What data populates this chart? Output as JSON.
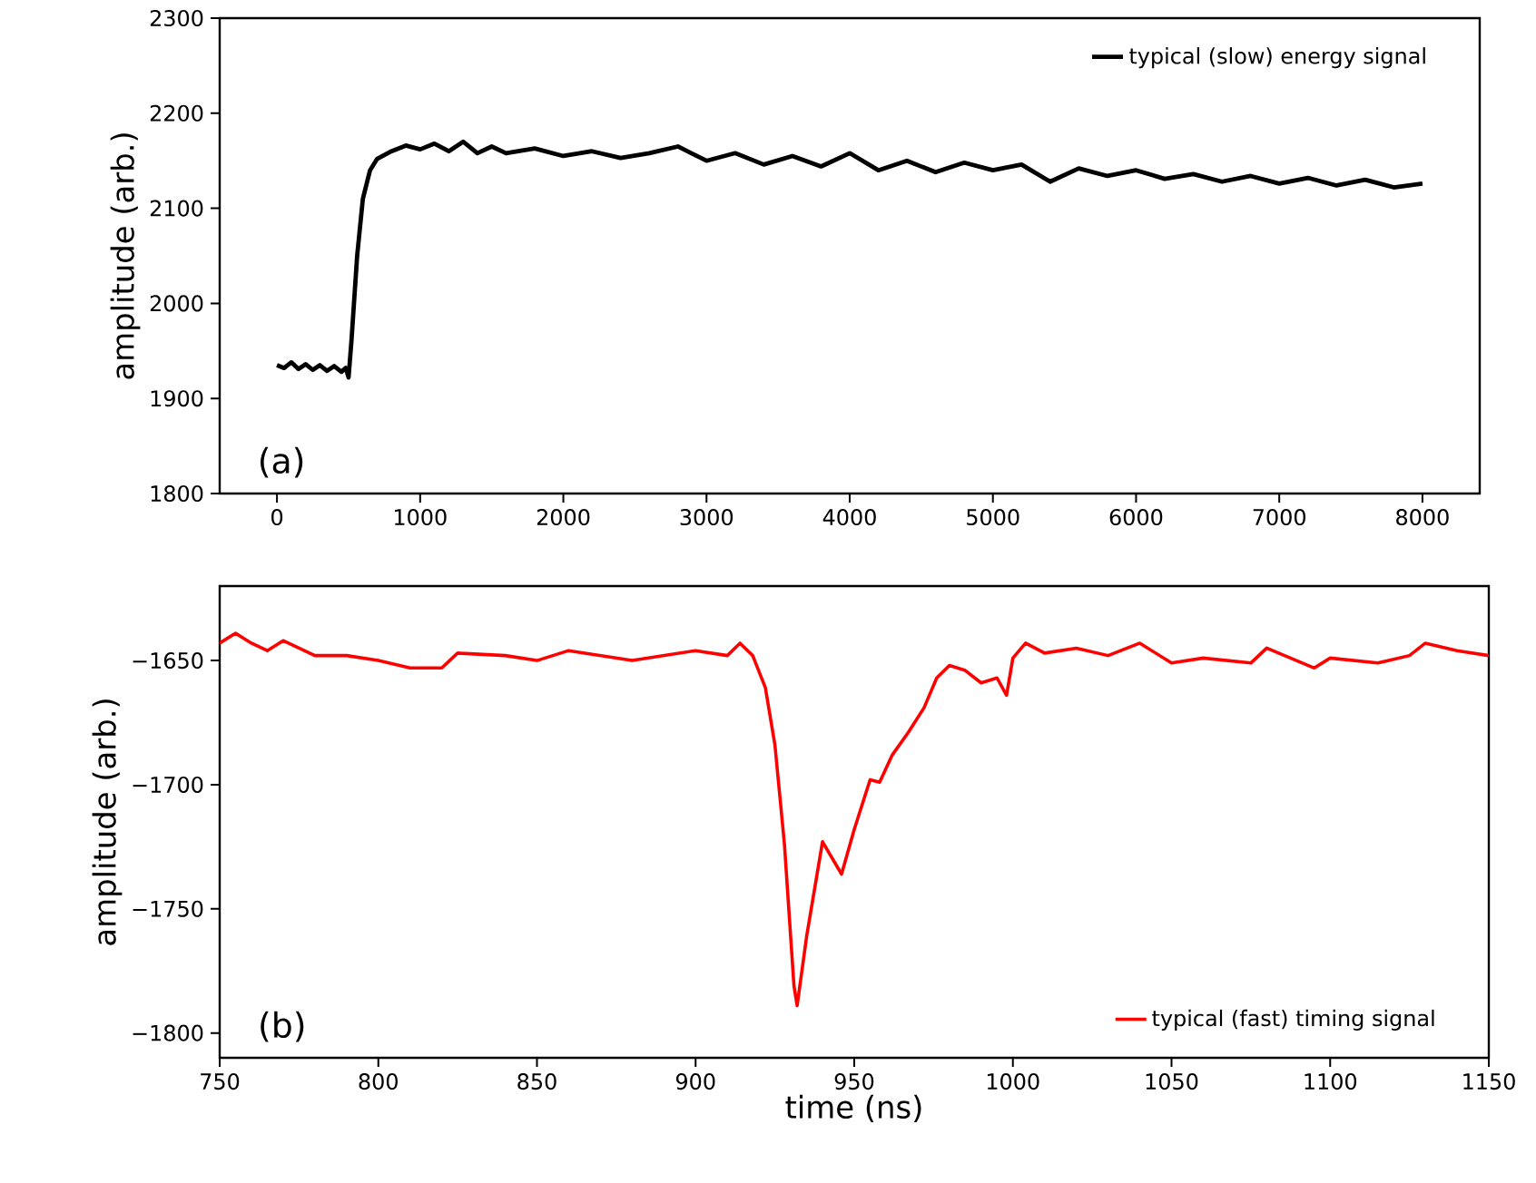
{
  "chart_data": [
    {
      "type": "line",
      "ylabel": "amplitude (arb.)",
      "annotations": [
        "(a)"
      ],
      "legend": "top right",
      "grid": false,
      "xlim": [
        -400,
        8400
      ],
      "ylim": [
        1800,
        2300
      ],
      "xticks": [
        0,
        1000,
        2000,
        3000,
        4000,
        5000,
        6000,
        7000,
        8000
      ],
      "yticks": [
        1800,
        1900,
        2000,
        2100,
        2200,
        2300
      ],
      "series": [
        {
          "name": "typical (slow) energy signal",
          "color": "#000000",
          "x": [
            0,
            50,
            100,
            150,
            200,
            250,
            300,
            350,
            400,
            450,
            480,
            500,
            520,
            560,
            600,
            650,
            700,
            800,
            900,
            1000,
            1100,
            1200,
            1300,
            1400,
            1500,
            1600,
            1800,
            2000,
            2200,
            2400,
            2600,
            2800,
            3000,
            3200,
            3400,
            3600,
            3800,
            4000,
            4200,
            4400,
            4600,
            4800,
            5000,
            5200,
            5400,
            5600,
            5800,
            6000,
            6200,
            6400,
            6600,
            6800,
            7000,
            7200,
            7400,
            7600,
            7800,
            8000
          ],
          "values": [
            1935,
            1932,
            1938,
            1931,
            1936,
            1930,
            1935,
            1929,
            1934,
            1928,
            1932,
            1922,
            1960,
            2050,
            2110,
            2140,
            2152,
            2160,
            2166,
            2162,
            2168,
            2160,
            2170,
            2158,
            2165,
            2158,
            2163,
            2155,
            2160,
            2153,
            2158,
            2165,
            2150,
            2158,
            2146,
            2155,
            2144,
            2158,
            2140,
            2150,
            2138,
            2148,
            2140,
            2146,
            2128,
            2142,
            2134,
            2140,
            2131,
            2136,
            2128,
            2134,
            2126,
            2132,
            2124,
            2130,
            2122,
            2126
          ]
        }
      ]
    },
    {
      "type": "line",
      "ylabel": "amplitude (arb.)",
      "xlabel": "time (ns)",
      "annotations": [
        "(b)"
      ],
      "legend": "bottom right",
      "grid": false,
      "xlim": [
        750,
        1150
      ],
      "ylim": [
        -1810,
        -1620
      ],
      "xticks": [
        750,
        800,
        850,
        900,
        950,
        1000,
        1050,
        1100,
        1150
      ],
      "yticks": [
        {
          "value": -1800,
          "label": "−1800"
        },
        {
          "value": -1750,
          "label": "−1750"
        },
        {
          "value": -1700,
          "label": "−1700"
        },
        {
          "value": -1650,
          "label": "−1650"
        }
      ],
      "series": [
        {
          "name": "typical (fast) timing signal",
          "color": "#ff0000",
          "x": [
            750,
            755,
            760,
            765,
            770,
            780,
            790,
            800,
            810,
            820,
            825,
            840,
            850,
            860,
            880,
            900,
            910,
            914,
            918,
            922,
            925,
            928,
            931,
            932,
            935,
            940,
            946,
            950,
            955,
            958,
            962,
            967,
            972,
            976,
            980,
            985,
            990,
            995,
            998,
            1000,
            1004,
            1010,
            1020,
            1030,
            1040,
            1050,
            1060,
            1075,
            1080,
            1095,
            1100,
            1115,
            1125,
            1130,
            1140,
            1150
          ],
          "values": [
            -1643,
            -1639,
            -1643,
            -1646,
            -1642,
            -1648,
            -1648,
            -1650,
            -1653,
            -1653,
            -1647,
            -1648,
            -1650,
            -1646,
            -1650,
            -1646,
            -1648,
            -1643,
            -1648,
            -1661,
            -1684,
            -1724,
            -1781,
            -1789,
            -1761,
            -1723,
            -1736,
            -1718,
            -1698,
            -1699,
            -1688,
            -1679,
            -1669,
            -1657,
            -1652,
            -1654,
            -1659,
            -1657,
            -1664,
            -1649,
            -1643,
            -1647,
            -1645,
            -1648,
            -1643,
            -1651,
            -1649,
            -1651,
            -1645,
            -1653,
            -1649,
            -1651,
            -1648,
            -1643,
            -1646,
            -1648
          ]
        }
      ]
    }
  ]
}
